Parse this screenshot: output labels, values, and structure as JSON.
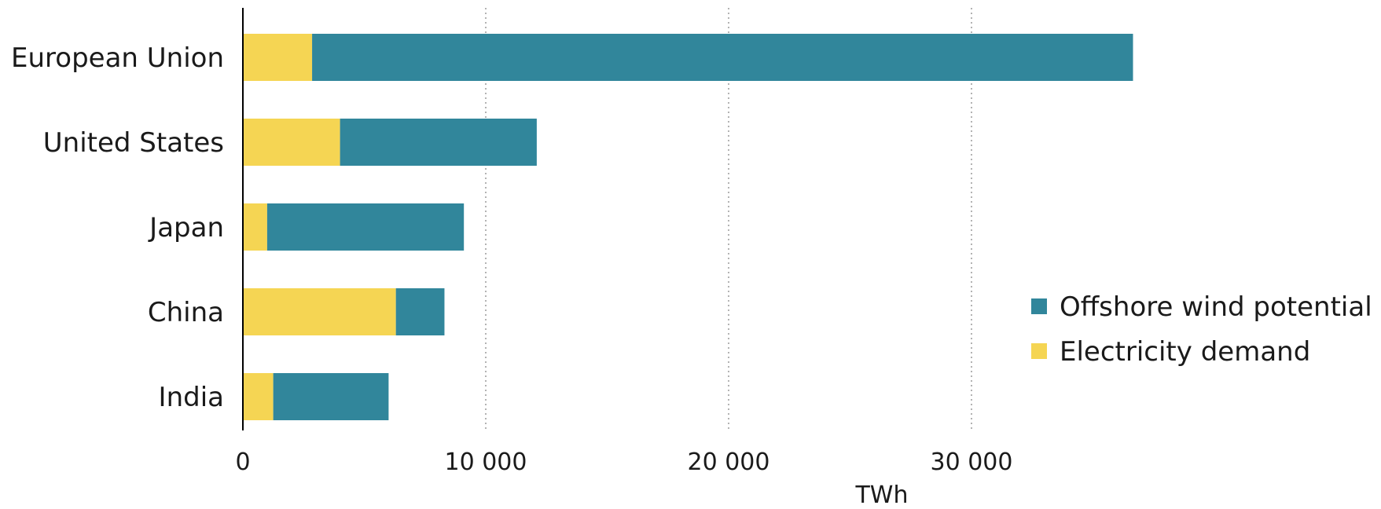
{
  "chart_data": {
    "type": "bar",
    "orientation": "horizontal",
    "stacked": true,
    "categories": [
      "European Union",
      "United States",
      "Japan",
      "China",
      "India"
    ],
    "series": [
      {
        "name": "Electricity demand",
        "color": "#F5D553",
        "values": [
          2850,
          4000,
          1000,
          6300,
          1250
        ]
      },
      {
        "name": "Offshore wind potential",
        "color": "#31869B",
        "values": [
          33800,
          8100,
          8100,
          2000,
          4750
        ]
      }
    ],
    "x_ticks": [
      {
        "value": 0,
        "label": "0"
      },
      {
        "value": 10000,
        "label": "10 000"
      },
      {
        "value": 20000,
        "label": "20 000"
      },
      {
        "value": 30000,
        "label": "30 000"
      }
    ],
    "xlim": [
      0,
      46000
    ],
    "xlabel": "TWh",
    "ylabel": "",
    "grid": "vertical-dotted",
    "legend": {
      "position": "right",
      "items": [
        {
          "label": "Offshore wind potential",
          "color": "#31869B"
        },
        {
          "label": "Electricity demand",
          "color": "#F5D553"
        }
      ]
    }
  }
}
